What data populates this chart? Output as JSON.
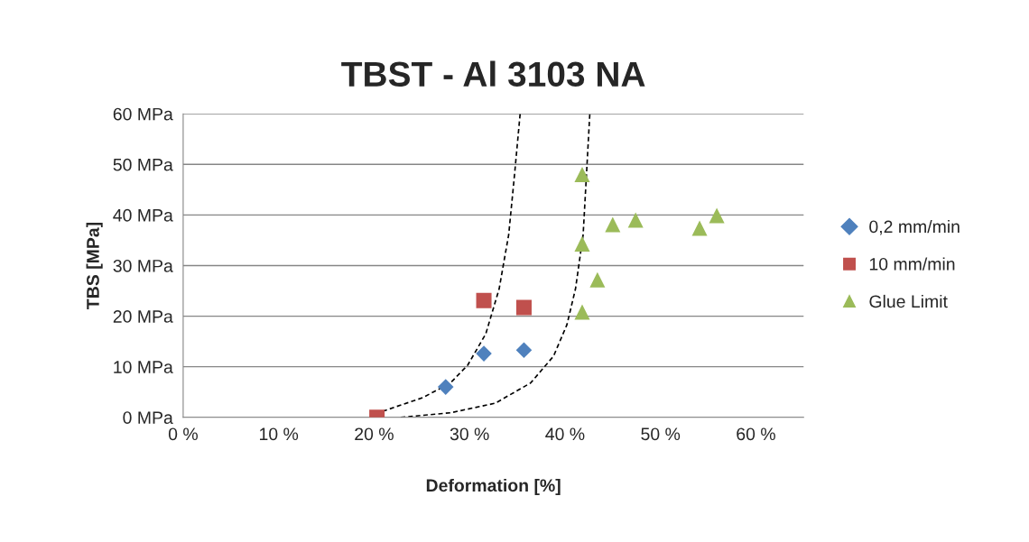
{
  "chart_data": {
    "type": "scatter",
    "title": "TBST - Al 3103 NA",
    "xlabel": "Deformation [%]",
    "ylabel": "TBS [MPa]",
    "xlim": [
      0,
      65
    ],
    "ylim": [
      0,
      60
    ],
    "xticks": [
      {
        "value": 0,
        "label": "0 %"
      },
      {
        "value": 10,
        "label": "10 %"
      },
      {
        "value": 20,
        "label": "20 %"
      },
      {
        "value": 30,
        "label": "30 %"
      },
      {
        "value": 40,
        "label": "40 %"
      },
      {
        "value": 50,
        "label": "50 %"
      },
      {
        "value": 60,
        "label": "60 %"
      }
    ],
    "yticks": [
      {
        "value": 0,
        "label": "0 MPa"
      },
      {
        "value": 10,
        "label": "10 MPa"
      },
      {
        "value": 20,
        "label": "20 MPa"
      },
      {
        "value": 30,
        "label": "30 MPa"
      },
      {
        "value": 40,
        "label": "40 MPa"
      },
      {
        "value": 50,
        "label": "50 MPa"
      },
      {
        "value": 60,
        "label": "60 MPa"
      }
    ],
    "grid": "y",
    "legend": "right",
    "series": [
      {
        "name": "0,2 mm/min",
        "color": "#4f81bd",
        "marker": "diamond",
        "x": [
          27.5,
          31.5,
          35.7
        ],
        "values": [
          6.0,
          12.6,
          13.3
        ]
      },
      {
        "name": "10 mm/min",
        "color": "#c0504d",
        "marker": "square",
        "x": [
          20.3,
          31.5,
          35.7
        ],
        "values": [
          0,
          23.1,
          21.7
        ]
      },
      {
        "name": "Glue Limit",
        "color": "#9bbb59",
        "marker": "triangle",
        "x": [
          41.8,
          41.8,
          45.0,
          47.4,
          43.4,
          41.8,
          54.1,
          55.9
        ],
        "values": [
          48.0,
          34.3,
          38.1,
          39.0,
          27.2,
          20.8,
          37.4,
          39.9
        ]
      },
      {
        "type": "line",
        "color": "#000000",
        "line_style": "dashed",
        "marker": "none",
        "x": [
          20.9,
          25.1,
          28.0,
          29.8,
          31.7,
          33.1,
          34.1,
          34.7,
          35.3
        ],
        "values": [
          1.2,
          3.9,
          6.8,
          10.3,
          16.5,
          25.4,
          36.1,
          47.7,
          60
        ]
      },
      {
        "type": "line",
        "color": "#000000",
        "line_style": "dashed",
        "marker": "none",
        "x": [
          22.8,
          28.0,
          32.7,
          36.4,
          38.8,
          40.2,
          41.1,
          41.9,
          42.6
        ],
        "values": [
          0,
          0.9,
          2.8,
          6.8,
          12.1,
          18.3,
          25.4,
          36.1,
          60
        ]
      }
    ]
  }
}
